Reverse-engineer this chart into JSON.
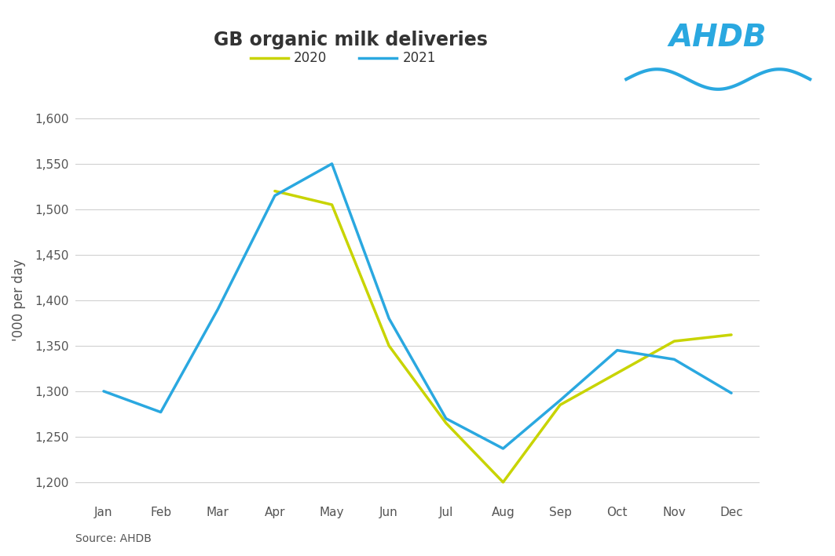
{
  "title": "GB organic milk deliveries",
  "ylabel": "'000 per day",
  "source": "Source: AHDB",
  "months": [
    "Jan",
    "Feb",
    "Mar",
    "Apr",
    "May",
    "Jun",
    "Jul",
    "Aug",
    "Sep",
    "Oct",
    "Nov",
    "Dec"
  ],
  "y2020": [
    null,
    null,
    null,
    1520,
    1505,
    1350,
    1265,
    1200,
    1285,
    1320,
    1355,
    1362
  ],
  "y2021": [
    1300,
    1277,
    1390,
    1515,
    1550,
    1380,
    1270,
    1237,
    1290,
    1345,
    1335,
    1298
  ],
  "color_2020": "#c8d400",
  "color_2021": "#2aa8e0",
  "ylim": [
    1180,
    1620
  ],
  "yticks": [
    1200,
    1250,
    1300,
    1350,
    1400,
    1450,
    1500,
    1550,
    1600
  ],
  "legend_2020": "2020",
  "legend_2021": "2021",
  "line_width": 2.5,
  "background_color": "#ffffff",
  "grid_color": "#d0d0d0",
  "title_fontsize": 17,
  "label_fontsize": 12,
  "tick_fontsize": 11
}
